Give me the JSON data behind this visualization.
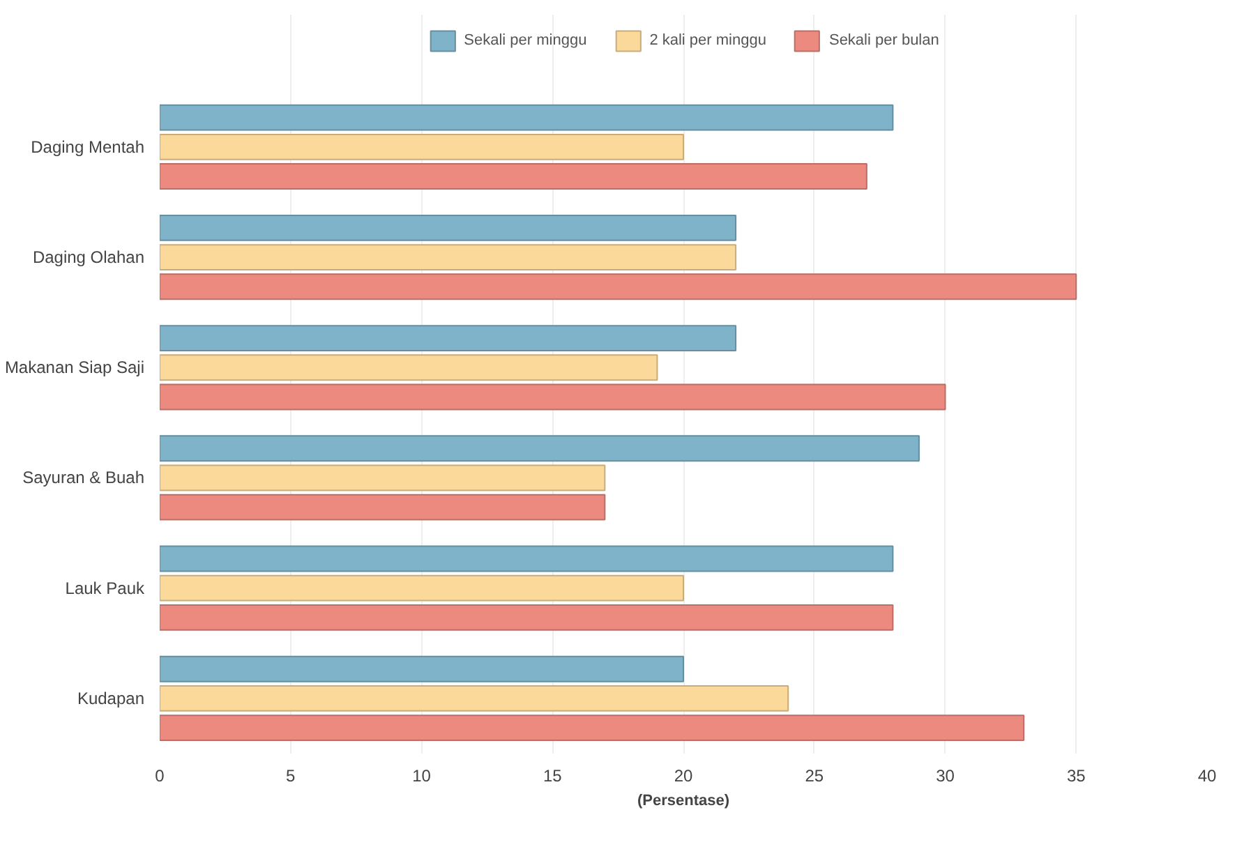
{
  "chart_data": {
    "type": "bar",
    "orientation": "horizontal",
    "xlabel": "(Persentase)",
    "categories": [
      "Daging Mentah",
      "Daging Olahan",
      "Makanan Siap Saji",
      "Sayuran & Buah",
      "Lauk Pauk",
      "Kudapan"
    ],
    "series": [
      {
        "name": "Sekali per minggu",
        "color": "#7fb3c9",
        "values": [
          28,
          22,
          22,
          29,
          28,
          20
        ]
      },
      {
        "name": "2 kali per minggu",
        "color": "#fbd99a",
        "values": [
          20,
          22,
          19,
          17,
          20,
          24
        ]
      },
      {
        "name": "Sekali per bulan",
        "color": "#ec8a80",
        "values": [
          27,
          35,
          30,
          17,
          28,
          33
        ]
      }
    ],
    "xlim": [
      0,
      40
    ],
    "xticks": [
      0,
      5,
      10,
      15,
      20,
      25,
      30,
      35,
      40
    ],
    "grid": "x",
    "legend": "top"
  }
}
